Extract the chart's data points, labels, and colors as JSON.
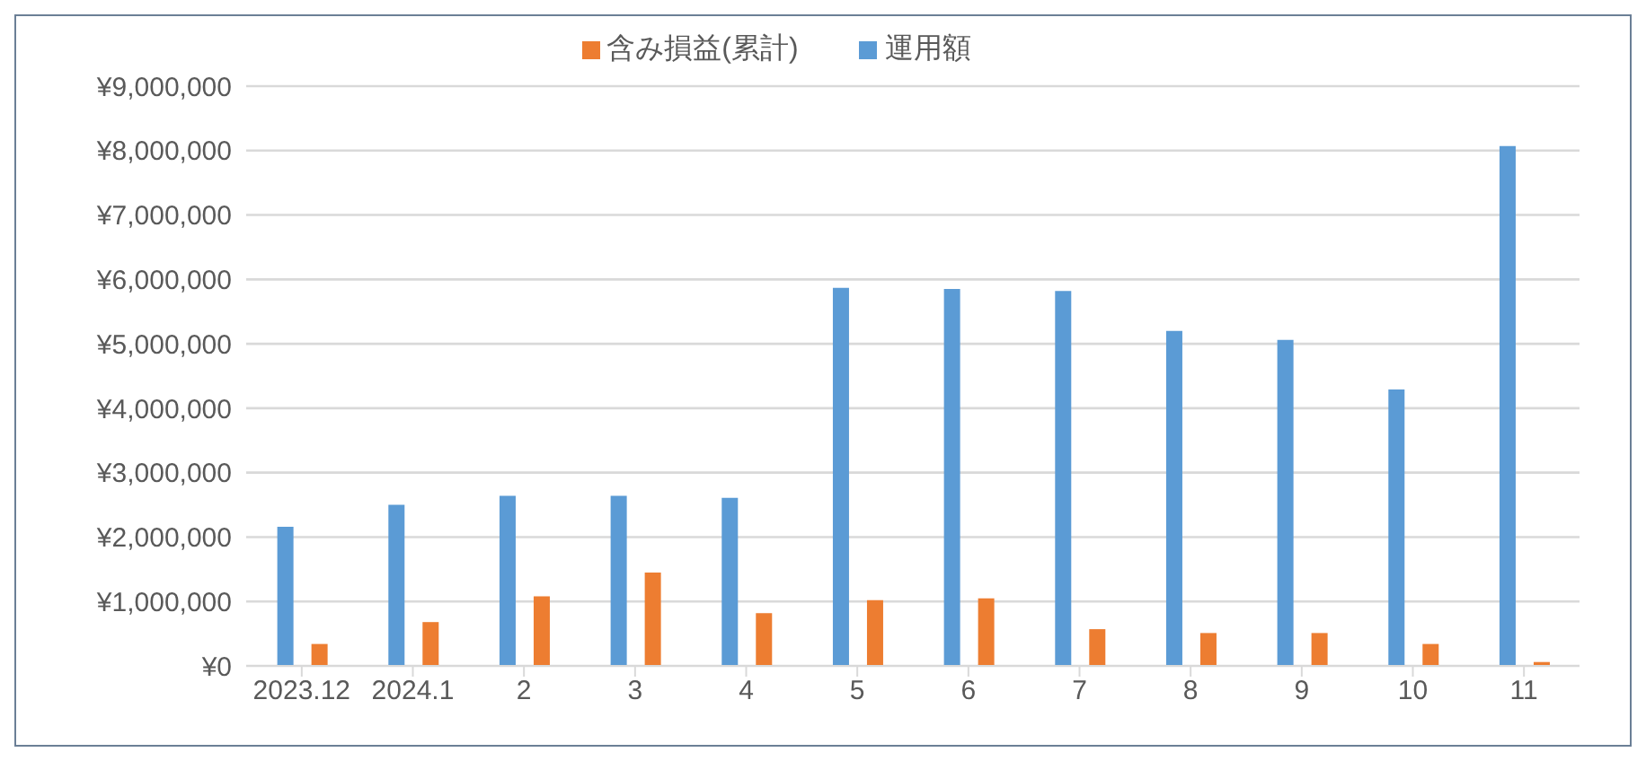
{
  "chart_data": {
    "type": "bar",
    "categories": [
      "2023.12",
      "2024.1",
      "2",
      "3",
      "4",
      "5",
      "6",
      "7",
      "8",
      "9",
      "10",
      "11"
    ],
    "series": [
      {
        "name": "運用額",
        "color": "#5b9bd5",
        "values": [
          2160000,
          2500000,
          2640000,
          2640000,
          2610000,
          5870000,
          5850000,
          5820000,
          5200000,
          5060000,
          4290000,
          8070000
        ]
      },
      {
        "name": "含み損益(累計)",
        "color": "#ed7d31",
        "values": [
          340000,
          680000,
          1080000,
          1450000,
          820000,
          1020000,
          1050000,
          570000,
          510000,
          510000,
          340000,
          60000
        ]
      }
    ],
    "ylim": [
      0,
      9000000
    ],
    "yticks": [
      {
        "value": 0,
        "label": "¥0"
      },
      {
        "value": 1000000,
        "label": "¥1,000,000"
      },
      {
        "value": 2000000,
        "label": "¥2,000,000"
      },
      {
        "value": 3000000,
        "label": "¥3,000,000"
      },
      {
        "value": 4000000,
        "label": "¥4,000,000"
      },
      {
        "value": 5000000,
        "label": "¥5,000,000"
      },
      {
        "value": 6000000,
        "label": "¥6,000,000"
      },
      {
        "value": 7000000,
        "label": "¥7,000,000"
      },
      {
        "value": 8000000,
        "label": "¥8,000,000"
      },
      {
        "value": 9000000,
        "label": "¥9,000,000"
      }
    ],
    "grid": "y",
    "legend": "top"
  }
}
